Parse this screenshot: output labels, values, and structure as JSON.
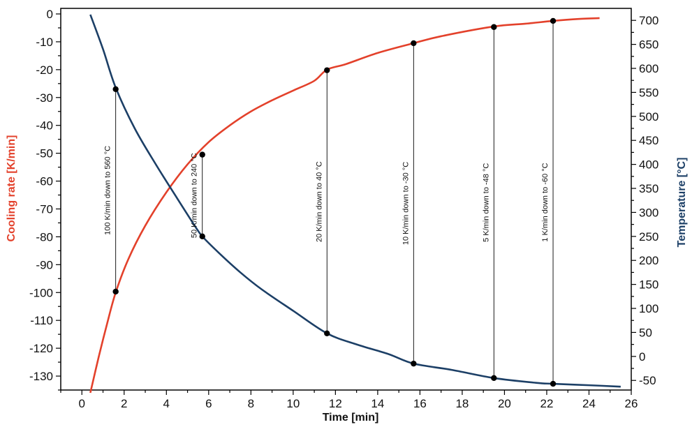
{
  "chart_data": {
    "type": "line",
    "xlabel": "Time [min]",
    "ylabel_left": "Cooling rate [K/min]",
    "ylabel_right": "Temperature [°C]",
    "xlim": [
      -1,
      26
    ],
    "ylim_left": [
      -135,
      2
    ],
    "ylim_right": [
      -70,
      725
    ],
    "x_ticks": [
      0,
      2,
      4,
      6,
      8,
      10,
      12,
      14,
      16,
      18,
      20,
      22,
      24,
      26
    ],
    "y_left_ticks": [
      0,
      -10,
      -20,
      -30,
      -40,
      -50,
      -60,
      -70,
      -80,
      -90,
      -100,
      -110,
      -120,
      -130
    ],
    "y_right_ticks": [
      700,
      650,
      600,
      550,
      500,
      450,
      400,
      350,
      300,
      250,
      200,
      150,
      100,
      50,
      0,
      -50
    ],
    "grid": false,
    "colors": {
      "cooling": "#e3412b",
      "temperature": "#1c3f66",
      "markers": "#000000"
    },
    "series": [
      {
        "key": "cooling",
        "axis": "left",
        "x": [
          0.4,
          0.8,
          1.2,
          1.6,
          2.2,
          3.0,
          4.0,
          5.0,
          6.0,
          7.0,
          8.0,
          9.0,
          10.0,
          11.0,
          11.6,
          12.5,
          14.0,
          15.7,
          17.0,
          19.5,
          21.0,
          22.3,
          23.5,
          24.5
        ],
        "y": [
          -136,
          -123,
          -111,
          -100,
          -88,
          -76,
          -64,
          -54,
          -46,
          -40,
          -35,
          -31,
          -27.5,
          -24,
          -20,
          -18,
          -14,
          -10.5,
          -8,
          -4.5,
          -3.5,
          -2.5,
          -1.8,
          -1.5
        ]
      },
      {
        "key": "temperature",
        "axis": "right",
        "x": [
          0.4,
          1.0,
          1.6,
          2.5,
          3.5,
          4.5,
          5.3,
          5.7,
          6.5,
          7.5,
          8.5,
          10.0,
          11.6,
          13.0,
          14.5,
          15.7,
          17.5,
          19.5,
          21.5,
          22.3,
          24.0,
          25.5
        ],
        "y": [
          712,
          640,
          560,
          475,
          400,
          330,
          275,
          250,
          215,
          175,
          140,
          95,
          48,
          25,
          5,
          -15,
          -28,
          -45,
          -55,
          -57,
          -60,
          -63
        ]
      }
    ],
    "annotations": [
      {
        "x": 1.6,
        "top_left": -27,
        "bottom_right": 135,
        "label": "100 K/min down to 560 °C"
      },
      {
        "x": 5.7,
        "top_left": -50.5,
        "bottom_right": 250,
        "label": "50 K/min down to 240 °C"
      },
      {
        "x": 11.6,
        "top_left": -20.2,
        "bottom_right": 48,
        "label": "20 K/min down to 40 °C"
      },
      {
        "x": 15.7,
        "top_left": -10.5,
        "bottom_right": -15,
        "label": "10 K/min down to -30 °C"
      },
      {
        "x": 19.5,
        "top_left": -4.7,
        "bottom_right": -45,
        "label": "5 K/min down to -48 °C"
      },
      {
        "x": 22.3,
        "top_left": -2.5,
        "bottom_right": -57,
        "label": "1 K/min down to -60 °C"
      }
    ]
  }
}
